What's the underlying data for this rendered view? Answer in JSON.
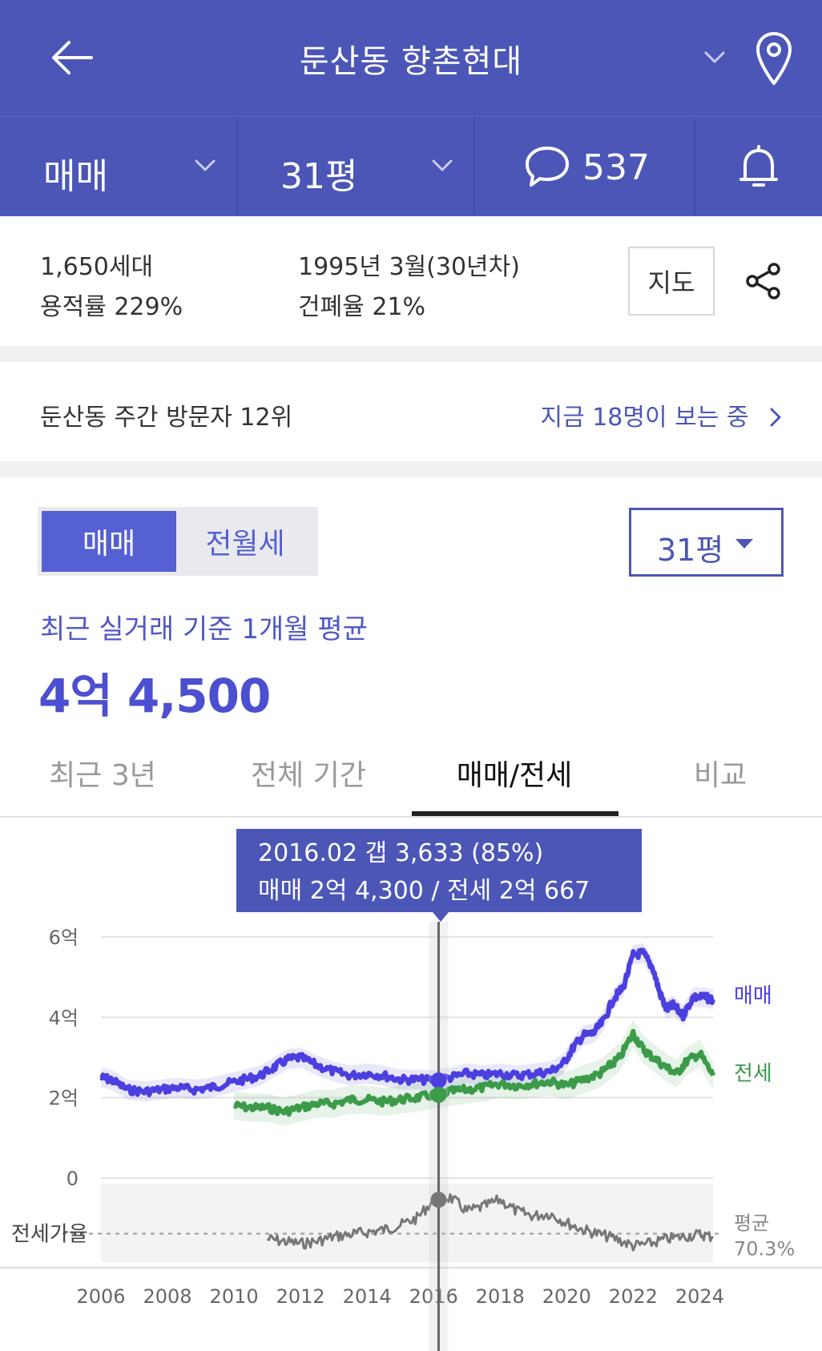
{
  "header": {
    "title": "둔산동 향촌현대",
    "back_icon": "arrow-left-icon",
    "location_icon": "map-pin-icon"
  },
  "subbar": {
    "trade_type": "매매",
    "area": "31평",
    "comment_count": "537",
    "comment_icon": "speech-bubble-icon",
    "bell_icon": "bell-icon"
  },
  "info": {
    "households": "1,650세대",
    "floor_area_ratio": "용적률 229%",
    "built": "1995년 3월(30년차)",
    "coverage_ratio": "건폐율 21%",
    "map_button": "지도",
    "share_icon": "share-icon"
  },
  "visitors": {
    "rank": "둔산동 주간 방문자 12위",
    "viewing_now": "지금 18명이 보는 중"
  },
  "price_toggle": {
    "sale": "매매",
    "rent": "전월세"
  },
  "size_select": {
    "value": "31평"
  },
  "average": {
    "caption": "최근 실거래 기준 1개월 평균",
    "value": "4억 4,500"
  },
  "tabs": [
    {
      "label": "최근 3년"
    },
    {
      "label": "전체 기간"
    },
    {
      "label": "매매/전세"
    },
    {
      "label": "비교"
    }
  ],
  "active_tab": 2,
  "tooltip": {
    "line1": "2016.02  갭 3,633 (85%)",
    "line2": "매매 2억 4,300 / 전세 2억 667"
  },
  "colors": {
    "brand": "#4c56b7",
    "sale_line": "#4b3fe0",
    "jeonse_line": "#3b9b49",
    "ratio_line": "#777777"
  },
  "chart_data": {
    "type": "line",
    "ylabel": "",
    "yticks": [
      "6억",
      "4억",
      "2억",
      "0"
    ],
    "ylim": [
      0,
      6
    ],
    "xlim": [
      2006,
      2024.4
    ],
    "xticks": [
      "2006",
      "2008",
      "2010",
      "2012",
      "2014",
      "2016",
      "2018",
      "2020",
      "2022",
      "2024"
    ],
    "series": [
      {
        "name": "매매",
        "x": [
          2006,
          2006.3,
          2006.8,
          2007.3,
          2007.8,
          2008.3,
          2008.8,
          2009.3,
          2009.8,
          2010.3,
          2010.8,
          2011.2,
          2011.6,
          2012.0,
          2012.5,
          2013.0,
          2013.5,
          2014.0,
          2014.5,
          2015.0,
          2015.5,
          2016.0,
          2016.5,
          2017.0,
          2017.5,
          2018.0,
          2018.5,
          2019.0,
          2019.5,
          2019.9,
          2020.2,
          2020.5,
          2020.8,
          2021.1,
          2021.4,
          2021.7,
          2022.0,
          2022.3,
          2022.6,
          2022.8,
          2023.0,
          2023.2,
          2023.5,
          2023.8,
          2024.1,
          2024.4
        ],
        "y": [
          2.5,
          2.45,
          2.2,
          2.15,
          2.2,
          2.25,
          2.2,
          2.25,
          2.35,
          2.45,
          2.55,
          2.75,
          2.95,
          3.0,
          2.8,
          2.65,
          2.55,
          2.6,
          2.55,
          2.45,
          2.45,
          2.43,
          2.5,
          2.6,
          2.55,
          2.6,
          2.55,
          2.6,
          2.65,
          2.85,
          3.25,
          3.55,
          3.6,
          3.9,
          4.45,
          4.75,
          5.55,
          5.6,
          5.2,
          4.6,
          4.2,
          4.3,
          4.05,
          4.5,
          4.5,
          4.45
        ]
      },
      {
        "name": "전세",
        "x": [
          2010.0,
          2010.5,
          2011.0,
          2011.5,
          2012.0,
          2012.5,
          2013.0,
          2013.5,
          2014.0,
          2014.5,
          2015.0,
          2015.5,
          2016.0,
          2016.5,
          2017.0,
          2017.5,
          2018.0,
          2018.5,
          2019.0,
          2019.5,
          2020.0,
          2020.5,
          2021.0,
          2021.3,
          2021.6,
          2022.0,
          2022.3,
          2022.6,
          2023.0,
          2023.3,
          2023.6,
          2024.0,
          2024.4
        ],
        "y": [
          1.8,
          1.75,
          1.75,
          1.65,
          1.75,
          1.85,
          1.85,
          1.95,
          1.95,
          1.9,
          1.95,
          2.0,
          2.07,
          2.15,
          2.2,
          2.25,
          2.35,
          2.3,
          2.35,
          2.4,
          2.3,
          2.45,
          2.6,
          2.8,
          3.0,
          3.6,
          3.2,
          3.0,
          2.75,
          2.6,
          2.9,
          3.1,
          2.55
        ]
      },
      {
        "name": "전세가율",
        "x": [
          2011.0,
          2011.5,
          2012.0,
          2012.5,
          2013.0,
          2013.5,
          2014.0,
          2014.5,
          2015.0,
          2015.5,
          2016.0,
          2016.5,
          2017.0,
          2017.5,
          2018.0,
          2018.5,
          2019.0,
          2019.5,
          2020.0,
          2020.5,
          2021.0,
          2021.5,
          2022.0,
          2022.5,
          2023.0,
          2023.5,
          2024.0,
          2024.4
        ],
        "y": [
          68,
          67,
          66,
          67,
          69,
          70,
          71,
          72,
          74,
          77,
          85,
          86,
          80,
          82,
          85,
          80,
          78,
          79,
          75,
          72,
          70,
          68,
          65,
          66,
          68,
          69,
          70,
          69
        ]
      }
    ],
    "ratio_label": "전세가율",
    "ratio_average": {
      "label": "평균",
      "value": "70.3%"
    },
    "cursor_x": 2016.15
  }
}
